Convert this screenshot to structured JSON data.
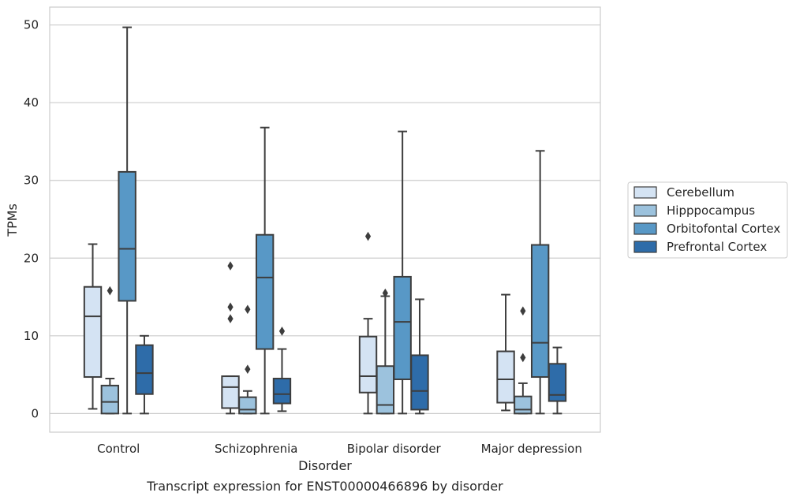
{
  "caption": "Transcript expression for ENST00000466896 by disorder",
  "chart_data": {
    "type": "box",
    "xlabel": "Disorder",
    "ylabel": "TPMs",
    "ylim": [
      -2.4,
      52.3
    ],
    "yticks": [
      0,
      10,
      20,
      30,
      40,
      50
    ],
    "grid": "horizontal",
    "legend_position": "right",
    "categories": [
      "Control",
      "Schizophrenia",
      "Bipolar disorder",
      "Major depression"
    ],
    "series": [
      {
        "name": "Cerebellum",
        "color": "#d4e3f3",
        "boxes": [
          {
            "whisker_low": 0.6,
            "q1": 4.7,
            "median": 12.5,
            "q3": 16.3,
            "whisker_high": 21.8,
            "outliers": []
          },
          {
            "whisker_low": 0.0,
            "q1": 0.7,
            "median": 3.4,
            "q3": 4.8,
            "whisker_high": 4.8,
            "outliers": [
              19.0,
              13.7,
              12.2
            ]
          },
          {
            "whisker_low": 0.0,
            "q1": 2.7,
            "median": 4.8,
            "q3": 9.9,
            "whisker_high": 12.2,
            "outliers": [
              22.8
            ]
          },
          {
            "whisker_low": 0.4,
            "q1": 1.4,
            "median": 4.4,
            "q3": 8.0,
            "whisker_high": 15.3,
            "outliers": []
          }
        ]
      },
      {
        "name": "Hipppocampus",
        "color": "#9cc2dd",
        "boxes": [
          {
            "whisker_low": 0.0,
            "q1": 0.0,
            "median": 1.5,
            "q3": 3.6,
            "whisker_high": 4.5,
            "outliers": [
              15.8
            ]
          },
          {
            "whisker_low": 0.0,
            "q1": 0.0,
            "median": 0.5,
            "q3": 2.1,
            "whisker_high": 2.9,
            "outliers": [
              13.4,
              5.7
            ]
          },
          {
            "whisker_low": 0.0,
            "q1": 0.0,
            "median": 1.1,
            "q3": 6.1,
            "whisker_high": 15.1,
            "outliers": [
              15.5
            ]
          },
          {
            "whisker_low": 0.0,
            "q1": 0.0,
            "median": 0.5,
            "q3": 2.2,
            "whisker_high": 3.9,
            "outliers": [
              13.2,
              7.2
            ]
          }
        ]
      },
      {
        "name": "Orbitofontal Cortex",
        "color": "#5898c6",
        "boxes": [
          {
            "whisker_low": 0.0,
            "q1": 14.5,
            "median": 21.2,
            "q3": 31.1,
            "whisker_high": 49.7,
            "outliers": []
          },
          {
            "whisker_low": 0.0,
            "q1": 8.3,
            "median": 17.5,
            "q3": 23.0,
            "whisker_high": 36.8,
            "outliers": []
          },
          {
            "whisker_low": 0.0,
            "q1": 4.4,
            "median": 11.8,
            "q3": 17.6,
            "whisker_high": 36.3,
            "outliers": []
          },
          {
            "whisker_low": 0.0,
            "q1": 4.7,
            "median": 9.1,
            "q3": 21.7,
            "whisker_high": 33.8,
            "outliers": []
          }
        ]
      },
      {
        "name": "Prefrontal Cortex",
        "color": "#2e6ca9",
        "boxes": [
          {
            "whisker_low": 0.0,
            "q1": 2.5,
            "median": 5.2,
            "q3": 8.8,
            "whisker_high": 10.0,
            "outliers": []
          },
          {
            "whisker_low": 0.3,
            "q1": 1.3,
            "median": 2.5,
            "q3": 4.5,
            "whisker_high": 8.3,
            "outliers": [
              10.6
            ]
          },
          {
            "whisker_low": 0.0,
            "q1": 0.5,
            "median": 2.9,
            "q3": 7.5,
            "whisker_high": 14.7,
            "outliers": []
          },
          {
            "whisker_low": 0.0,
            "q1": 1.6,
            "median": 2.4,
            "q3": 6.4,
            "whisker_high": 8.5,
            "outliers": []
          }
        ]
      }
    ]
  }
}
